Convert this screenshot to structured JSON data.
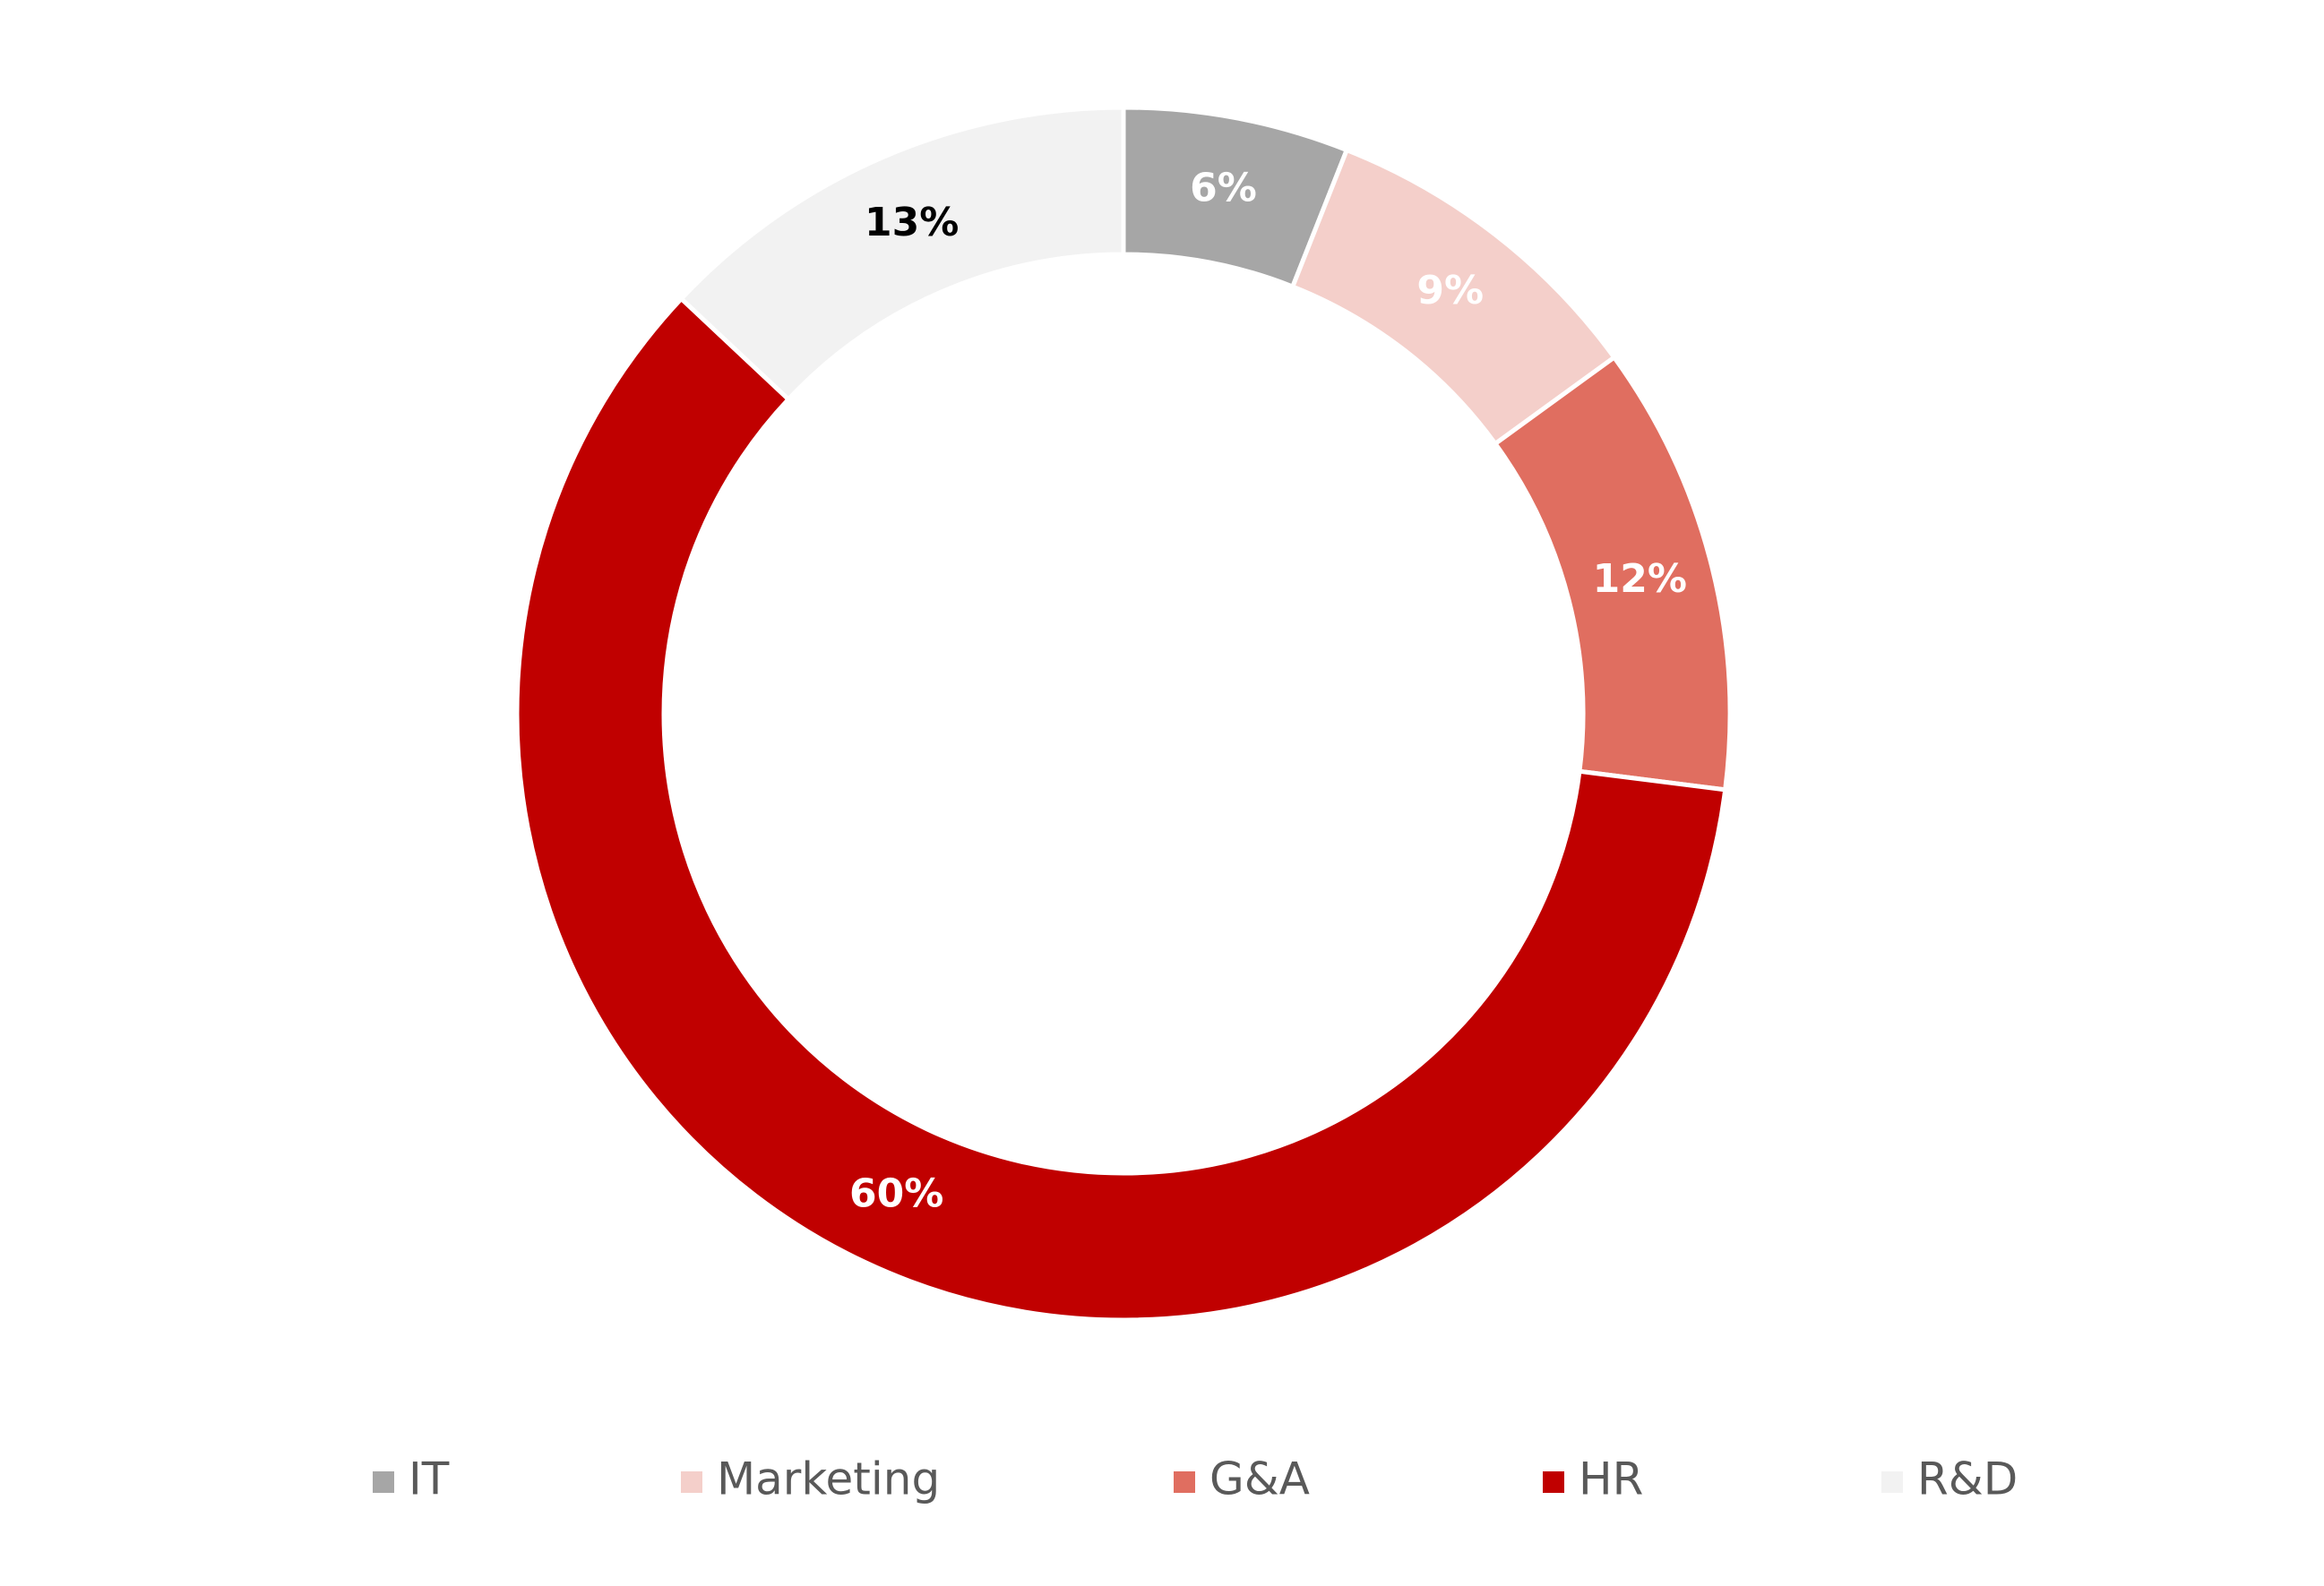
{
  "chart_data": {
    "type": "donut",
    "categories": [
      "IT",
      "Marketing",
      "G&A",
      "HR",
      "R&D"
    ],
    "values": [
      6,
      9,
      12,
      60,
      13
    ],
    "value_labels": [
      "6%",
      "9%",
      "12%",
      "60%",
      "13%"
    ],
    "colors": [
      "#a6a6a6",
      "#f4cfca",
      "#e06e60",
      "#c00000",
      "#f2f2f2"
    ],
    "label_colors": [
      "#ffffff",
      "#ffffff",
      "#ffffff",
      "#ffffff",
      "#000000"
    ],
    "legend": "bottom"
  }
}
